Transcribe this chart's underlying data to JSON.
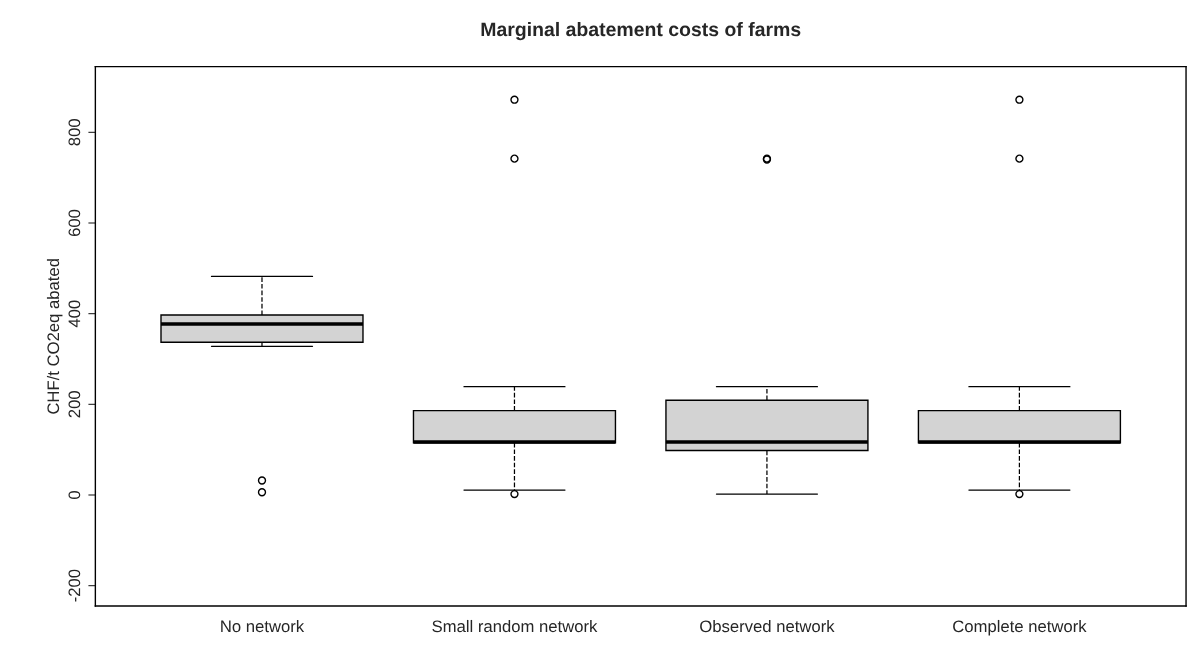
{
  "chart_data": {
    "type": "box",
    "title": "Marginal abatement costs of farms",
    "ylabel": "CHF/t CO2eq abated",
    "categories": [
      "No network",
      "Small random network",
      "Observed network",
      "Complete network"
    ],
    "color": "#d3d3d3",
    "boxes": [
      {
        "low": 328,
        "q1": 337,
        "median": 377,
        "q3": 397,
        "high": 482,
        "outliers": [
          32,
          6
        ]
      },
      {
        "low": 11,
        "q1": 115,
        "median": 117,
        "q3": 186,
        "high": 239,
        "outliers": [
          2,
          742,
          872
        ]
      },
      {
        "low": 2,
        "q1": 98,
        "median": 117,
        "q3": 209,
        "high": 239,
        "outliers": [
          742,
          740
        ]
      },
      {
        "low": 11,
        "q1": 115,
        "median": 117,
        "q3": 186,
        "high": 239,
        "outliers": [
          2,
          742,
          872
        ]
      }
    ],
    "ylim": [
      -245,
      945
    ],
    "yticks": [
      -200,
      0,
      200,
      400,
      600,
      800
    ],
    "grid": false
  }
}
